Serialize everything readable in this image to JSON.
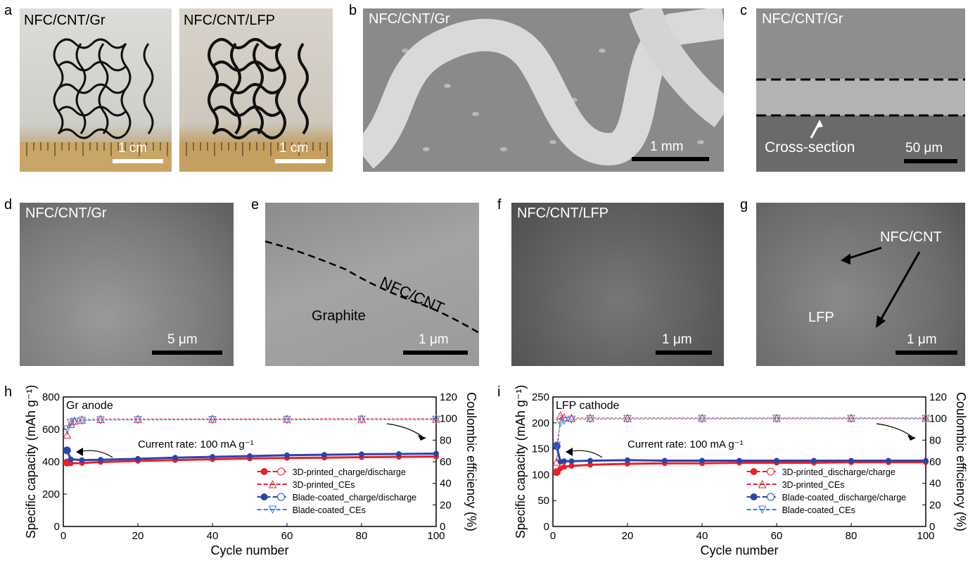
{
  "labels": {
    "a": "a",
    "b": "b",
    "c": "c",
    "d": "d",
    "e": "e",
    "f": "f",
    "g": "g",
    "h": "h",
    "i": "i"
  },
  "panel_a": {
    "left": {
      "title": "NFC/CNT/Gr",
      "scale": "1 cm"
    },
    "right": {
      "title": "NFC/CNT/LFP",
      "scale": "1 cm"
    }
  },
  "panel_b": {
    "title": "NFC/CNT/Gr",
    "scale": "1 mm"
  },
  "panel_c": {
    "title": "NFC/CNT/Gr",
    "annotation": "Cross-section",
    "scale": "50 μm"
  },
  "panel_d": {
    "title": "NFC/CNT/Gr",
    "scale": "5 μm"
  },
  "panel_e": {
    "label_top": "NFC/CNT",
    "label_bottom": "Graphite",
    "scale": "1 μm"
  },
  "panel_f": {
    "title": "NFC/CNT/LFP",
    "scale": "1 μm"
  },
  "panel_g": {
    "label_top": "NFC/CNT",
    "label_bottom": "LFP",
    "scale": "1 μm"
  },
  "chart_data": [
    {
      "type": "scatter",
      "panel": "h",
      "title": "Gr anode",
      "annotation": "Current rate: 100 mA g⁻¹",
      "xlabel": "Cycle number",
      "ylabel": "Specific capacity (mAh g⁻¹)",
      "y2label": "Coulombic efficiency (%)",
      "xlim": [
        0,
        100
      ],
      "ylim": [
        0,
        800
      ],
      "y2lim": [
        0,
        120
      ],
      "xticks": [
        0,
        20,
        40,
        60,
        80,
        100
      ],
      "yticks": [
        0,
        200,
        400,
        600,
        800
      ],
      "y2ticks": [
        0,
        20,
        40,
        60,
        80,
        100,
        120
      ],
      "legend_position": "bottom-right",
      "legend": [
        "3D-printed_charge/discharge",
        "3D-printed_CEs",
        "Blade-coated_charge/discharge",
        "Blade-coated_CEs"
      ],
      "series": [
        {
          "name": "3D-printed_charge/discharge",
          "axis": "left",
          "color": "#e8202a",
          "x": [
            1,
            2,
            5,
            10,
            20,
            30,
            40,
            50,
            60,
            70,
            80,
            90,
            100
          ],
          "values": [
            395,
            390,
            392,
            398,
            405,
            410,
            415,
            420,
            423,
            425,
            428,
            430,
            432
          ]
        },
        {
          "name": "3D-printed_CEs",
          "axis": "right",
          "color": "#e8202a",
          "x": [
            1,
            2,
            3,
            5,
            10,
            20,
            40,
            60,
            80,
            100
          ],
          "values": [
            85,
            95,
            98,
            99,
            99.5,
            99.6,
            99.7,
            99.7,
            99.8,
            99.8
          ]
        },
        {
          "name": "Blade-coated_charge/discharge",
          "axis": "left",
          "color": "#2a45a8",
          "x": [
            1,
            2,
            5,
            10,
            20,
            30,
            40,
            50,
            60,
            70,
            80,
            90,
            100
          ],
          "values": [
            470,
            415,
            410,
            412,
            418,
            425,
            430,
            435,
            440,
            443,
            446,
            448,
            450
          ]
        },
        {
          "name": "Blade-coated_CEs",
          "axis": "right",
          "color": "#3a7fd8",
          "x": [
            1,
            2,
            3,
            5,
            10,
            20,
            40,
            60,
            80,
            100
          ],
          "values": [
            90,
            96,
            97,
            98,
            98.5,
            98.7,
            98.8,
            98.9,
            99,
            99
          ]
        }
      ]
    },
    {
      "type": "scatter",
      "panel": "i",
      "title": "LFP cathode",
      "annotation": "Current rate: 100 mA g⁻¹",
      "xlabel": "Cycle number",
      "ylabel": "Specific capacity (mAh g⁻¹)",
      "y2label": "Coulombic efficiency (%)",
      "xlim": [
        0,
        100
      ],
      "ylim": [
        0,
        250
      ],
      "y2lim": [
        0,
        120
      ],
      "xticks": [
        0,
        20,
        40,
        60,
        80,
        100
      ],
      "yticks": [
        0,
        50,
        100,
        150,
        200,
        250
      ],
      "y2ticks": [
        0,
        20,
        40,
        60,
        80,
        100,
        120
      ],
      "legend_position": "bottom-right",
      "legend": [
        "3D-printed_discharge/charge",
        "3D-printed_CEs",
        "Blade-coated_discharge/charge",
        "Blade-coated_CEs"
      ],
      "series": [
        {
          "name": "3D-printed_discharge/charge",
          "axis": "left",
          "color": "#e8202a",
          "x": [
            1,
            2,
            3,
            5,
            10,
            20,
            30,
            40,
            50,
            60,
            70,
            80,
            90,
            100
          ],
          "values": [
            105,
            112,
            115,
            117,
            119,
            121,
            122,
            122,
            123,
            123,
            123,
            124,
            124,
            124
          ]
        },
        {
          "name": "3D-printed_CEs",
          "axis": "right",
          "color": "#e8202a",
          "x": [
            1,
            2,
            3,
            5,
            10,
            20,
            40,
            60,
            80,
            100
          ],
          "values": [
            60,
            103,
            101,
            100.5,
            100.5,
            100.5,
            100.5,
            100.5,
            100.5,
            100.5
          ]
        },
        {
          "name": "Blade-coated_discharge/charge",
          "axis": "left",
          "color": "#2a45a8",
          "x": [
            1,
            2,
            3,
            5,
            10,
            20,
            30,
            40,
            50,
            60,
            70,
            80,
            90,
            100
          ],
          "values": [
            155,
            125,
            126,
            126,
            127,
            128,
            127,
            127,
            127,
            127,
            127,
            127,
            127,
            127
          ]
        },
        {
          "name": "Blade-coated_CEs",
          "axis": "right",
          "color": "#3a7fd8",
          "x": [
            1,
            2,
            3,
            5,
            10,
            20,
            40,
            60,
            80,
            100
          ],
          "values": [
            75,
            96,
            98,
            99,
            99.5,
            99.6,
            99.7,
            99.8,
            99.8,
            99.8
          ]
        }
      ]
    }
  ]
}
